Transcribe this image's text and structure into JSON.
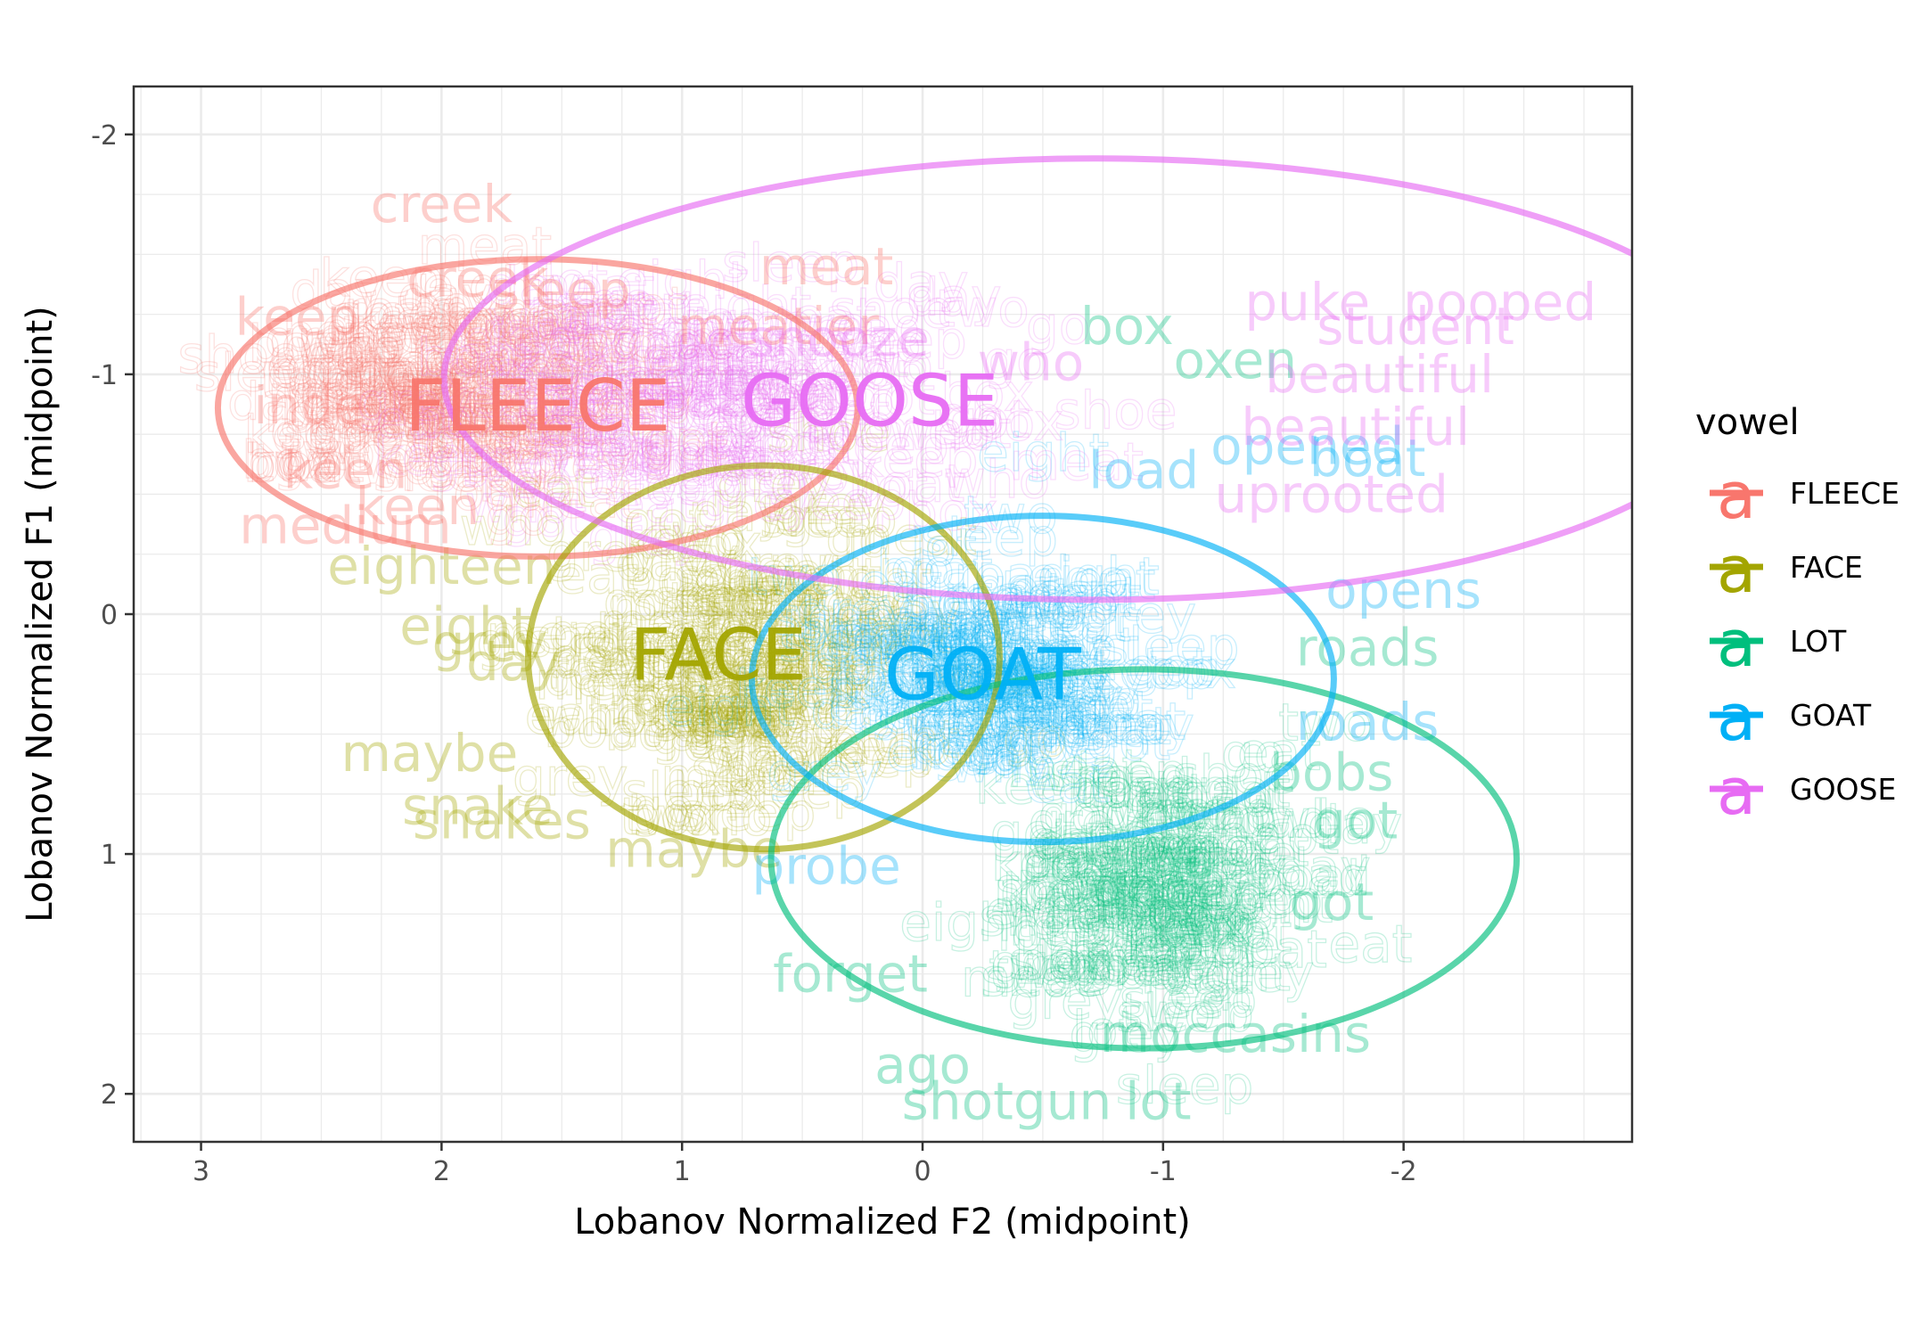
{
  "chart_data": {
    "type": "scatter",
    "title": "",
    "xlabel": "Lobanov Normalized F2 (midpoint)",
    "ylabel": "Lobanov Normalized F1 (midpoint)",
    "xlim": [
      3.28,
      -2.95
    ],
    "ylim": [
      -2.2,
      2.2
    ],
    "x_reversed": true,
    "y_reversed": true,
    "x_ticks": [
      3,
      2,
      1,
      0,
      -1,
      -2
    ],
    "y_ticks": [
      -2,
      -1,
      0,
      1,
      2
    ],
    "x_tick_labels": [
      "3",
      "2",
      "1",
      "0",
      "-1",
      "-2"
    ],
    "y_tick_labels": [
      "-2",
      "-1",
      "0",
      "1",
      "2"
    ],
    "grid": true,
    "legend": {
      "title": "vowel",
      "position": "right",
      "key_glyph": "a",
      "entries": [
        "FLEECE",
        "FACE",
        "LOT",
        "GOAT",
        "GOOSE"
      ]
    },
    "series": [
      {
        "name": "FLEECE",
        "color": "#F8766D",
        "centroid": {
          "x": 1.6,
          "y": -0.87,
          "label": "FLEECE"
        },
        "ellipse": {
          "cx": 1.6,
          "cy": -0.86,
          "rx": 1.33,
          "ry": 0.62
        },
        "core": {
          "cx": 1.95,
          "cy": -0.95,
          "sx": 0.42,
          "sy": 0.22
        },
        "words": [
          {
            "text": "creek",
            "x": 2.0,
            "y": -1.71
          },
          {
            "text": "creek",
            "x": 1.85,
            "y": -1.4
          },
          {
            "text": "sleep",
            "x": 1.5,
            "y": -1.35
          },
          {
            "text": "keep",
            "x": 2.6,
            "y": -1.24
          },
          {
            "text": "meat",
            "x": 0.4,
            "y": -1.45
          },
          {
            "text": "meatier",
            "x": 0.6,
            "y": -1.2
          },
          {
            "text": "inde",
            "x": 2.55,
            "y": -0.87
          },
          {
            "text": "keen",
            "x": 2.4,
            "y": -0.6
          },
          {
            "text": "keen",
            "x": 2.1,
            "y": -0.45
          },
          {
            "text": "medium",
            "x": 2.4,
            "y": -0.37
          }
        ]
      },
      {
        "name": "FACE",
        "color": "#A3A500",
        "centroid": {
          "x": 0.85,
          "y": 0.17,
          "label": "FACE"
        },
        "ellipse": {
          "cx": 0.66,
          "cy": 0.18,
          "rx": 0.98,
          "ry": 0.8
        },
        "core": {
          "cx": 0.75,
          "cy": 0.2,
          "sx": 0.35,
          "sy": 0.28
        },
        "words": [
          {
            "text": "eighteen",
            "x": 2.0,
            "y": -0.2
          },
          {
            "text": "eight",
            "x": 1.9,
            "y": 0.05
          },
          {
            "text": "grey",
            "x": 1.8,
            "y": 0.12
          },
          {
            "text": "day",
            "x": 1.7,
            "y": 0.2
          },
          {
            "text": "maybe",
            "x": 2.05,
            "y": 0.58
          },
          {
            "text": "snake",
            "x": 1.85,
            "y": 0.8
          },
          {
            "text": "snakes",
            "x": 1.75,
            "y": 0.86
          },
          {
            "text": "maybe",
            "x": 0.95,
            "y": 0.98
          }
        ]
      },
      {
        "name": "LOT",
        "color": "#00BF7D",
        "centroid": {
          "x": -0.9,
          "y": 1.05,
          "label": ""
        },
        "ellipse": {
          "cx": -0.92,
          "cy": 1.02,
          "rx": 1.55,
          "ry": 0.79
        },
        "core": {
          "cx": -0.95,
          "cy": 1.12,
          "sx": 0.32,
          "sy": 0.26
        },
        "words": [
          {
            "text": "box",
            "x": -0.85,
            "y": -1.2
          },
          {
            "text": "oxen",
            "x": -1.3,
            "y": -1.06
          },
          {
            "text": "forget",
            "x": 0.3,
            "y": 1.5
          },
          {
            "text": "roads",
            "x": -1.85,
            "y": 0.14
          },
          {
            "text": "bobs",
            "x": -1.7,
            "y": 0.66
          },
          {
            "text": "got",
            "x": -1.8,
            "y": 0.86
          },
          {
            "text": "got",
            "x": -1.7,
            "y": 1.2
          },
          {
            "text": "moccasins",
            "x": -1.3,
            "y": 1.75
          },
          {
            "text": "ago",
            "x": 0.0,
            "y": 1.88
          },
          {
            "text": "shotgun",
            "x": -0.35,
            "y": 2.03
          },
          {
            "text": "lot",
            "x": -0.98,
            "y": 2.03
          }
        ]
      },
      {
        "name": "GOAT",
        "color": "#00B0F6",
        "centroid": {
          "x": -0.25,
          "y": 0.25,
          "label": "GOAT"
        },
        "ellipse": {
          "cx": -0.5,
          "cy": 0.27,
          "rx": 1.21,
          "ry": 0.68
        },
        "core": {
          "cx": -0.3,
          "cy": 0.22,
          "sx": 0.35,
          "sy": 0.22
        },
        "words": [
          {
            "text": "boat",
            "x": -1.85,
            "y": -0.65
          },
          {
            "text": "opened",
            "x": -1.6,
            "y": -0.7
          },
          {
            "text": "opens",
            "x": -2.0,
            "y": -0.1
          },
          {
            "text": "roads",
            "x": -1.85,
            "y": 0.45
          },
          {
            "text": "load",
            "x": -0.92,
            "y": -0.6
          },
          {
            "text": "probe",
            "x": 0.4,
            "y": 1.05
          }
        ]
      },
      {
        "name": "GOOSE",
        "color": "#E76BF3",
        "centroid": {
          "x": 0.22,
          "y": -0.89,
          "label": "GOOSE"
        },
        "ellipse": {
          "cx": -0.72,
          "cy": -0.98,
          "rx": 2.71,
          "ry": 0.92
        },
        "core": {
          "cx": 0.8,
          "cy": -0.9,
          "sx": 0.55,
          "sy": 0.25
        },
        "words": [
          {
            "text": "puke",
            "x": -1.6,
            "y": -1.3
          },
          {
            "text": "pooped",
            "x": -2.4,
            "y": -1.3
          },
          {
            "text": "student",
            "x": -2.05,
            "y": -1.2
          },
          {
            "text": "beautiful",
            "x": -1.9,
            "y": -1.0
          },
          {
            "text": "beautiful",
            "x": -1.8,
            "y": -0.78
          },
          {
            "text": "who",
            "x": -0.45,
            "y": -1.05
          },
          {
            "text": "uprooted",
            "x": -1.7,
            "y": -0.5
          },
          {
            "text": "snooze",
            "x": 0.35,
            "y": -1.15
          }
        ]
      }
    ]
  }
}
